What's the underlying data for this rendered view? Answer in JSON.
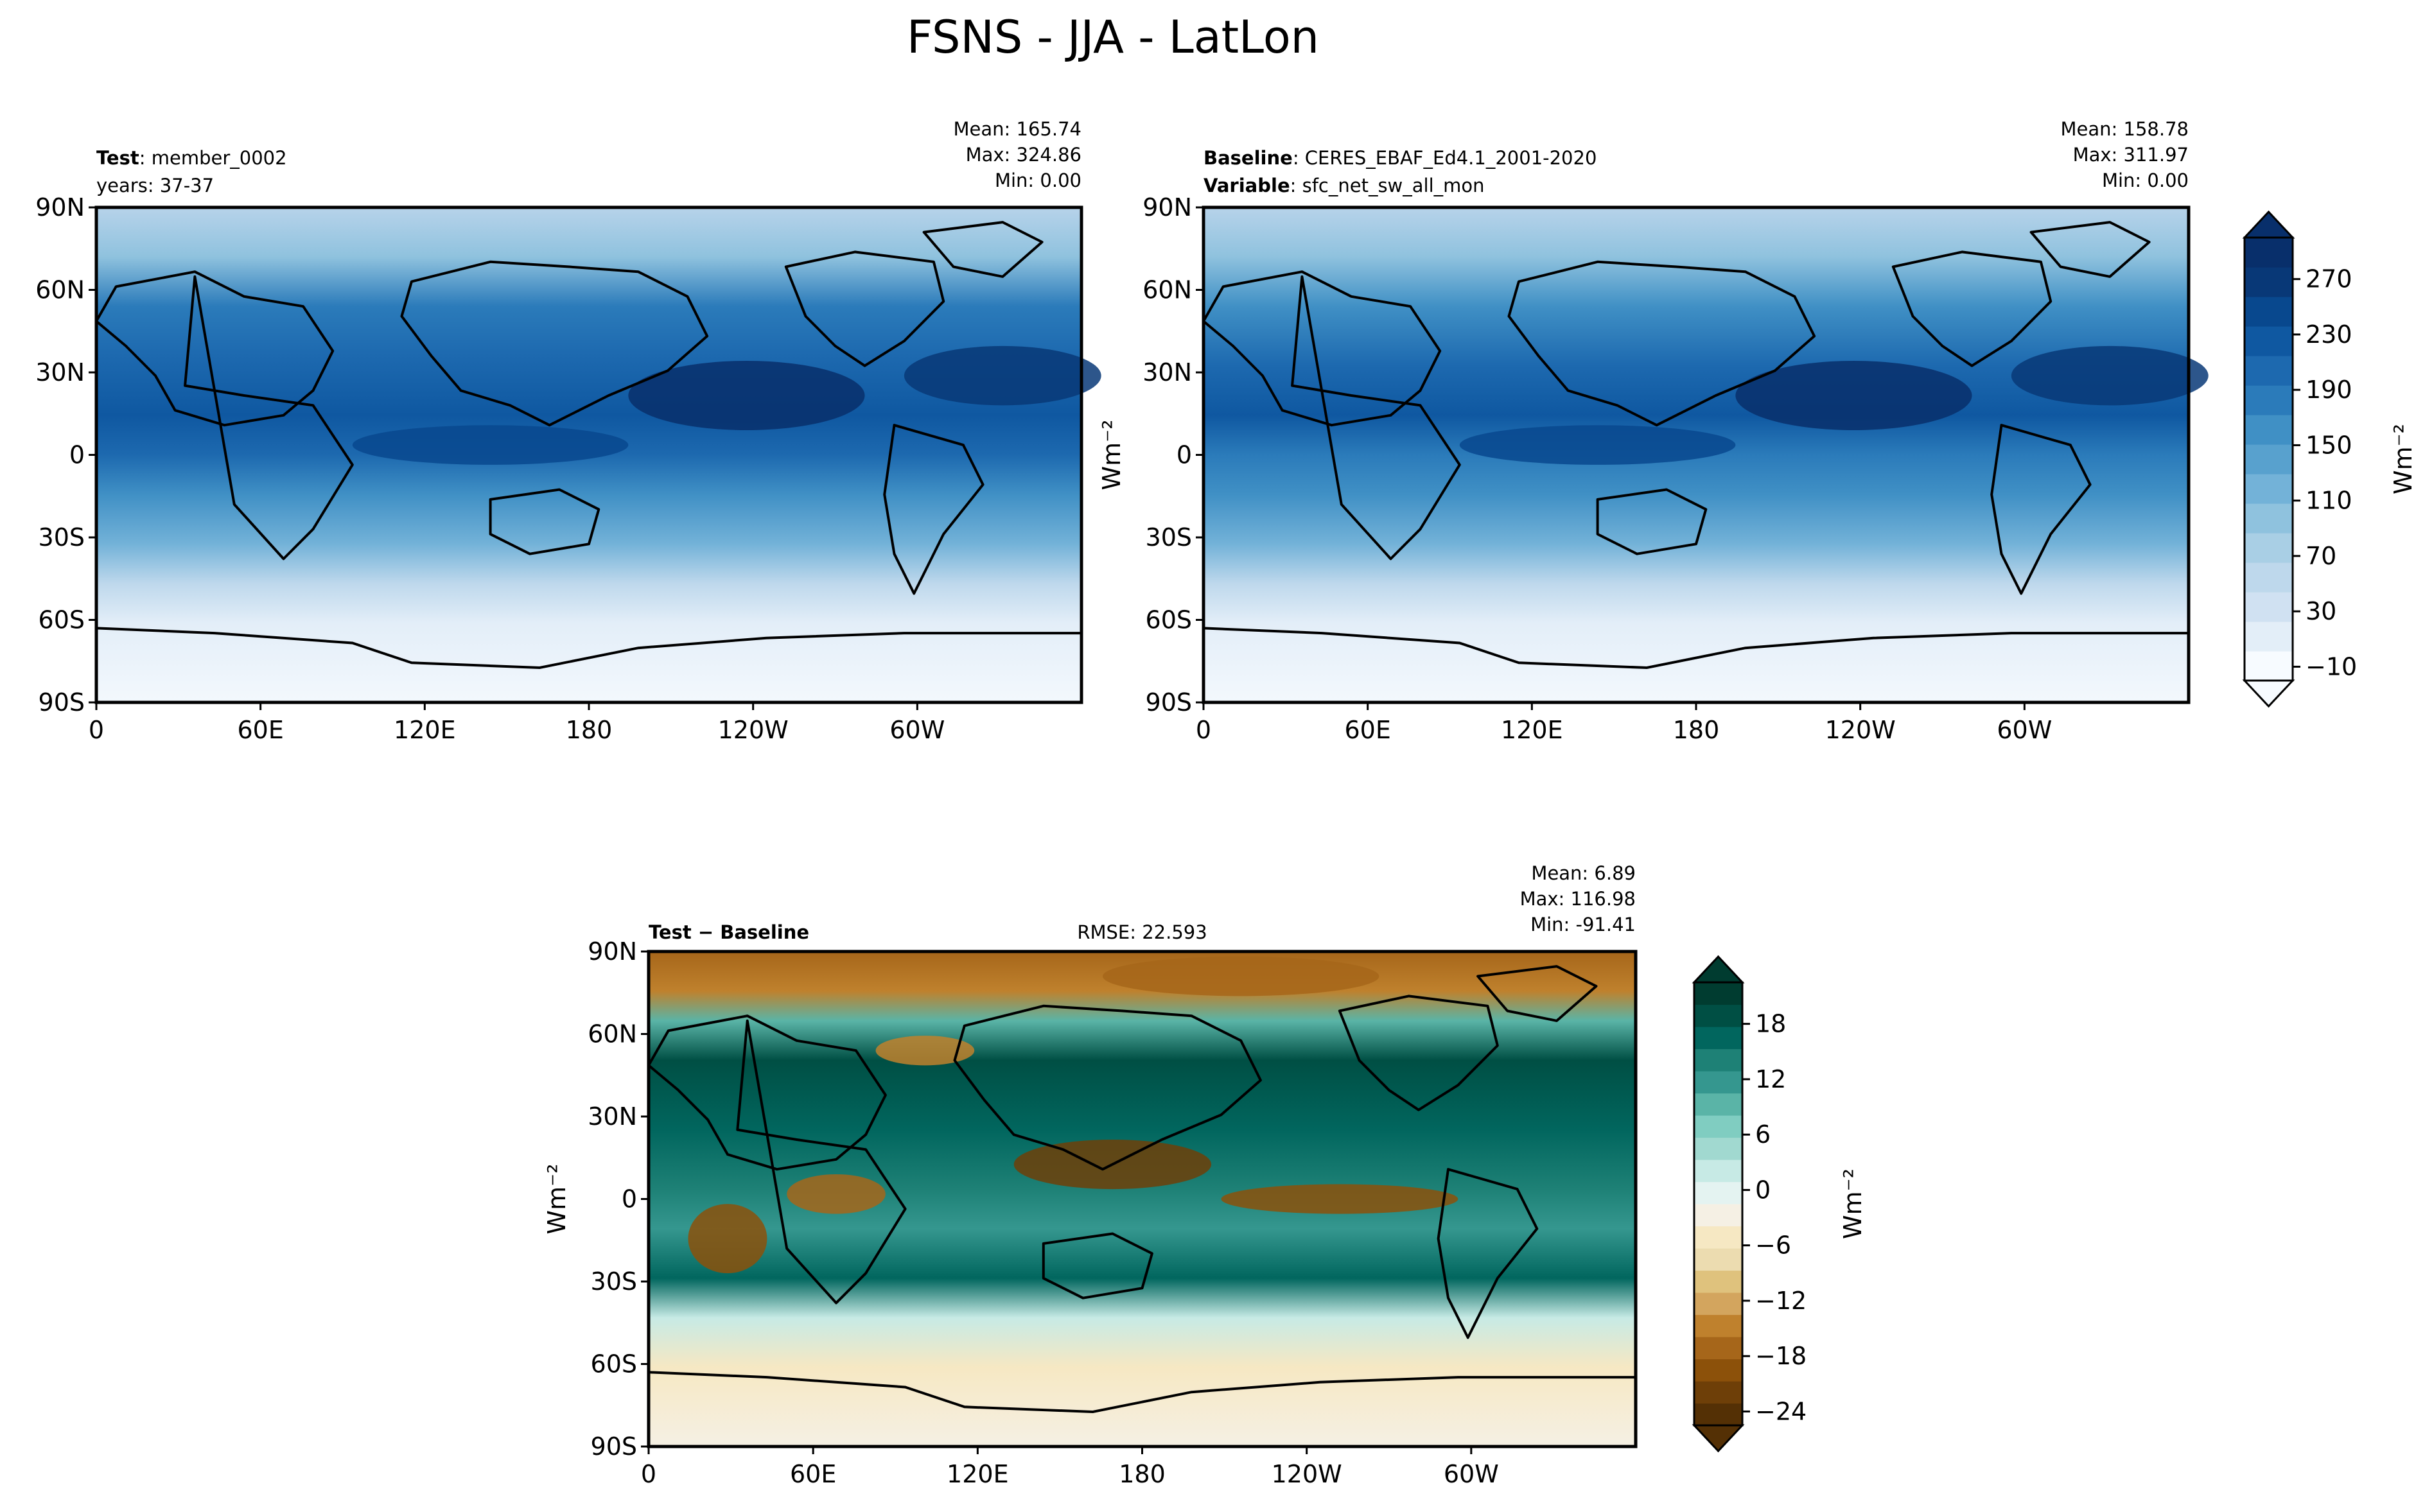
{
  "figure_title": "FSNS - JJA - LatLon",
  "units_label": "Wm⁻²",
  "lon_tick_labels": [
    "0",
    "60E",
    "120E",
    "180",
    "120W",
    "60W"
  ],
  "lat_tick_labels": [
    "90N",
    "60N",
    "30N",
    "0",
    "30S",
    "60S",
    "90S"
  ],
  "panels": [
    {
      "id": "test",
      "title_bold": "Test",
      "title_rest": ": member_0002",
      "subtitle": "years: 37-37",
      "stats": [
        "Mean: 165.74",
        "Max: 324.86",
        "Min:  0.00"
      ]
    },
    {
      "id": "baseline",
      "title_bold": "Baseline",
      "title_rest": ": CERES_EBAF_Ed4.1_2001-2020",
      "subtitle_bold": "Variable",
      "subtitle_rest": ": sfc_net_sw_all_mon",
      "stats": [
        "Mean: 158.78",
        "Max: 311.97",
        "Min:  0.00"
      ]
    },
    {
      "id": "diff",
      "title_bold": "Test − Baseline",
      "center_text": "RMSE: 22.593",
      "stats": [
        "Mean:  6.89",
        "Max: 116.98",
        "Min: -91.41"
      ]
    }
  ],
  "colorbars": {
    "top": {
      "tick_labels": [
        "270",
        "230",
        "190",
        "150",
        "110",
        "70",
        "30",
        "−10"
      ],
      "colors": [
        "#f7fbff",
        "#e3eef8",
        "#d0e1f2",
        "#bed8ec",
        "#a9cfe5",
        "#8fc2de",
        "#73b2d8",
        "#58a1ce",
        "#4090c5",
        "#2b7bba",
        "#1d69af",
        "#0f58a1",
        "#08488e",
        "#083877",
        "#082f6b"
      ]
    },
    "bottom": {
      "tick_labels": [
        "18",
        "12",
        "6",
        "0",
        "−6",
        "−12",
        "−18",
        "−24"
      ],
      "colors": [
        "#543005",
        "#6e3f08",
        "#8c510a",
        "#a6661a",
        "#bf812d",
        "#d3a55e",
        "#dfc27d",
        "#ecdcb0",
        "#f6e8c3",
        "#f5f0e4",
        "#e4f3f1",
        "#c7eae5",
        "#a1d9d0",
        "#80cdc1",
        "#5ab4a7",
        "#35978f",
        "#1e8176",
        "#01665e",
        "#004f44",
        "#003c30"
      ]
    }
  },
  "chart_data": [
    {
      "type": "heatmap",
      "title": "Test: member_0002",
      "variable": "FSNS",
      "season": "JJA",
      "units": "Wm-2",
      "x": [
        "0",
        "60E",
        "120E",
        "180",
        "120W",
        "60W"
      ],
      "y": [
        "90N",
        "60N",
        "30N",
        "0",
        "30S",
        "60S",
        "90S"
      ],
      "colorbar_levels": [
        -10,
        30,
        70,
        110,
        150,
        190,
        230,
        270
      ],
      "stats": {
        "mean": 165.74,
        "max": 324.86,
        "min": 0.0
      }
    },
    {
      "type": "heatmap",
      "title": "Baseline: CERES_EBAF_Ed4.1_2001-2020",
      "variable": "sfc_net_sw_all_mon",
      "units": "Wm-2",
      "x": [
        "0",
        "60E",
        "120E",
        "180",
        "120W",
        "60W"
      ],
      "y": [
        "90N",
        "60N",
        "30N",
        "0",
        "30S",
        "60S",
        "90S"
      ],
      "colorbar_levels": [
        -10,
        30,
        70,
        110,
        150,
        190,
        230,
        270
      ],
      "stats": {
        "mean": 158.78,
        "max": 311.97,
        "min": 0.0
      }
    },
    {
      "type": "heatmap",
      "title": "Test - Baseline",
      "units": "Wm-2",
      "x": [
        "0",
        "60E",
        "120E",
        "180",
        "120W",
        "60W"
      ],
      "y": [
        "90N",
        "60N",
        "30N",
        "0",
        "30S",
        "60S",
        "90S"
      ],
      "colorbar_levels": [
        -24,
        -18,
        -12,
        -6,
        0,
        6,
        12,
        18
      ],
      "stats": {
        "mean": 6.89,
        "max": 116.98,
        "min": -91.41,
        "rmse": 22.593
      }
    }
  ]
}
